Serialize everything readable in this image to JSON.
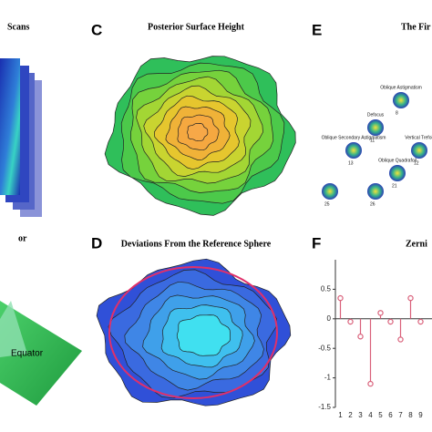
{
  "panels": {
    "a": {
      "title": "Scans"
    },
    "b": {
      "title": "or",
      "annotation": "Equator"
    },
    "c": {
      "label": "C",
      "title": "Posterior Surface Height"
    },
    "d": {
      "label": "D",
      "title": "Deviations From the Reference Sphere"
    },
    "e": {
      "label": "E",
      "title": "The Fir",
      "modes": [
        {
          "index": "8",
          "name": "Oblique Astigmatism"
        },
        {
          "index": "11",
          "name": "Defocus"
        },
        {
          "index": "12",
          "name": "Vertical Trefoil"
        },
        {
          "index": "13",
          "name": "Oblique Secondary Astigmatism"
        },
        {
          "index": "21",
          "name": "Oblique Quadrafoil"
        },
        {
          "index": "25",
          "name": ""
        },
        {
          "index": "26",
          "name": ""
        }
      ]
    },
    "f": {
      "label": "F",
      "title": "Zerni",
      "chart": {
        "type": "stem",
        "color": "#d9607a",
        "categories": [
          1,
          2,
          3,
          4,
          5,
          6,
          7,
          8,
          9
        ],
        "values": [
          0.35,
          -0.05,
          -0.3,
          -1.1,
          0.1,
          -0.05,
          -0.35,
          0.35,
          -0.05
        ],
        "ylim": [
          -1.5,
          1
        ],
        "yticks": [
          0.5,
          0,
          -0.5,
          -1,
          -1.5
        ]
      }
    }
  }
}
